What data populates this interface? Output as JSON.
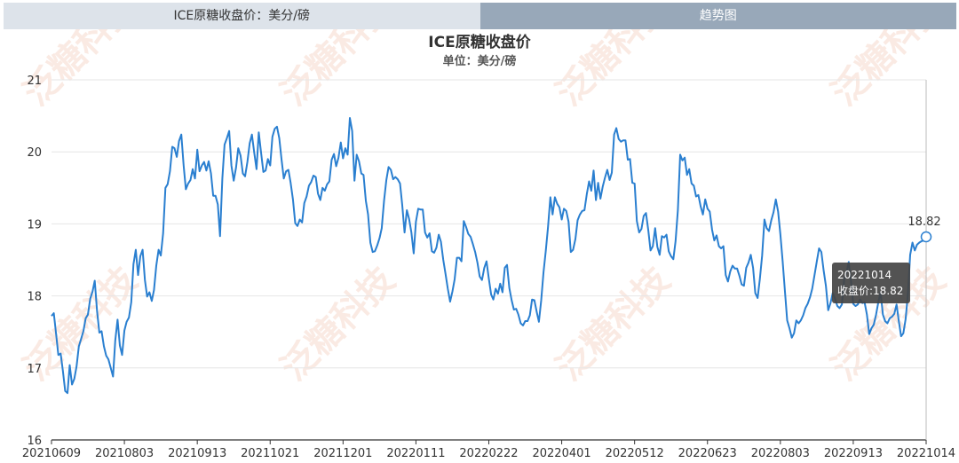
{
  "tabs": [
    {
      "label": "ICE原糖收盘价：美分/磅"
    },
    {
      "label": "趋势图"
    }
  ],
  "watermark": "泛糖科技",
  "tooltip": {
    "date": "20221014",
    "text": "收盘价:18.82"
  },
  "last_label": "18.82",
  "colors": {
    "line": "#2a7fd0",
    "grid": "#e6e6e6",
    "axis": "#333333",
    "watermark": "#f5d0c0"
  },
  "chart_data": {
    "type": "line",
    "title": "ICE原糖收盘价",
    "subtitle": "单位：美分/磅",
    "xlabel": "",
    "ylabel": "",
    "ylim": [
      16,
      21
    ],
    "yticks": [
      16,
      17,
      18,
      19,
      20,
      21
    ],
    "xticks": [
      "20210609",
      "20210803",
      "20210913",
      "20211021",
      "20211201",
      "20220111",
      "20220222",
      "20220401",
      "20220512",
      "20220623",
      "20220803",
      "20220913",
      "20221014"
    ],
    "series": [
      {
        "name": "收盘价",
        "values": [
          17.72,
          17.76,
          17.48,
          17.18,
          17.2,
          16.96,
          16.68,
          16.65,
          17.04,
          16.77,
          16.85,
          17.02,
          17.3,
          17.4,
          17.51,
          17.69,
          17.74,
          17.96,
          18.06,
          18.21,
          17.79,
          17.49,
          17.51,
          17.3,
          17.17,
          17.12,
          17.0,
          16.88,
          17.38,
          17.67,
          17.31,
          17.18,
          17.52,
          17.64,
          17.7,
          17.91,
          18.44,
          18.64,
          18.29,
          18.55,
          18.64,
          18.22,
          17.99,
          18.05,
          17.93,
          18.08,
          18.42,
          18.64,
          18.56,
          18.87,
          19.5,
          19.55,
          19.73,
          20.07,
          20.05,
          19.93,
          20.15,
          20.24,
          19.81,
          19.48,
          19.56,
          19.61,
          19.76,
          19.63,
          20.03,
          19.73,
          19.81,
          19.86,
          19.74,
          19.87,
          19.7,
          19.39,
          19.39,
          19.27,
          18.83,
          19.63,
          20.1,
          20.19,
          20.29,
          19.81,
          19.6,
          19.78,
          20.05,
          19.95,
          19.7,
          19.66,
          19.86,
          20.12,
          20.24,
          19.99,
          19.76,
          20.27,
          19.99,
          19.72,
          19.74,
          19.9,
          19.81,
          20.21,
          20.32,
          20.35,
          20.19,
          19.89,
          19.63,
          19.73,
          19.75,
          19.57,
          19.34,
          19.01,
          18.97,
          19.06,
          19.02,
          19.29,
          19.38,
          19.53,
          19.58,
          19.67,
          19.65,
          19.42,
          19.33,
          19.5,
          19.46,
          19.55,
          19.59,
          19.89,
          19.97,
          19.8,
          19.92,
          20.13,
          19.91,
          20.05,
          19.96,
          20.47,
          20.29,
          19.6,
          19.96,
          19.87,
          19.7,
          19.68,
          19.32,
          19.13,
          18.74,
          18.61,
          18.62,
          18.7,
          18.8,
          18.94,
          19.32,
          19.61,
          19.79,
          19.75,
          19.62,
          19.65,
          19.62,
          19.56,
          19.26,
          18.88,
          19.19,
          19.07,
          18.88,
          18.59,
          19.03,
          19.21,
          19.2,
          19.2,
          18.88,
          18.81,
          18.87,
          18.62,
          18.6,
          18.67,
          18.85,
          18.75,
          18.5,
          18.3,
          18.1,
          17.92,
          18.06,
          18.23,
          18.53,
          18.53,
          18.48,
          19.04,
          18.96,
          18.86,
          18.82,
          18.72,
          18.61,
          18.46,
          18.27,
          18.22,
          18.39,
          18.48,
          18.24,
          18.02,
          17.95,
          18.1,
          18.03,
          18.17,
          18.05,
          18.39,
          18.43,
          18.11,
          17.94,
          17.81,
          17.82,
          17.74,
          17.62,
          17.59,
          17.65,
          17.65,
          17.73,
          17.95,
          17.94,
          17.78,
          17.64,
          17.94,
          18.33,
          18.62,
          18.96,
          19.37,
          19.13,
          19.37,
          19.28,
          19.23,
          19.06,
          19.21,
          19.18,
          19.03,
          18.61,
          18.64,
          18.79,
          19.05,
          19.13,
          19.18,
          19.19,
          19.41,
          19.59,
          19.46,
          19.74,
          19.33,
          19.57,
          19.35,
          19.52,
          19.64,
          19.75,
          19.61,
          19.71,
          20.24,
          20.33,
          20.18,
          20.14,
          20.16,
          20.16,
          19.89,
          19.9,
          19.57,
          19.56,
          19.04,
          18.88,
          18.93,
          19.11,
          19.15,
          18.91,
          18.63,
          18.69,
          18.94,
          18.68,
          18.57,
          18.83,
          18.81,
          18.85,
          18.62,
          18.55,
          18.51,
          18.76,
          19.19,
          19.96,
          19.88,
          19.92,
          19.68,
          19.76,
          19.56,
          19.53,
          19.38,
          19.4,
          19.24,
          19.13,
          19.34,
          19.21,
          19.17,
          18.92,
          18.77,
          18.84,
          18.69,
          18.66,
          18.69,
          18.29,
          18.2,
          18.34,
          18.42,
          18.38,
          18.38,
          18.28,
          18.16,
          18.14,
          18.39,
          18.46,
          18.57,
          18.39,
          18.04,
          17.97,
          18.23,
          18.56,
          19.06,
          18.94,
          18.9,
          19.05,
          19.16,
          19.34,
          19.17,
          18.86,
          18.48,
          18.06,
          17.66,
          17.55,
          17.42,
          17.48,
          17.66,
          17.62,
          17.66,
          17.73,
          17.83,
          17.89,
          17.98,
          18.1,
          18.29,
          18.48,
          18.66,
          18.61,
          18.35,
          18.14,
          17.8,
          17.9,
          18.04,
          17.96,
          17.86,
          17.83,
          17.88,
          18.23,
          18.32,
          18.47,
          18.2,
          17.89,
          17.86,
          17.88,
          17.95,
          17.9,
          17.91,
          17.74,
          17.47,
          17.55,
          17.6,
          17.74,
          17.91,
          18.05,
          17.74,
          17.65,
          17.62,
          17.69,
          17.71,
          17.75,
          17.88,
          17.65,
          17.44,
          17.48,
          17.68,
          18.03,
          18.57,
          18.74,
          18.63,
          18.71,
          18.74,
          18.76,
          18.77,
          18.82
        ]
      }
    ]
  }
}
